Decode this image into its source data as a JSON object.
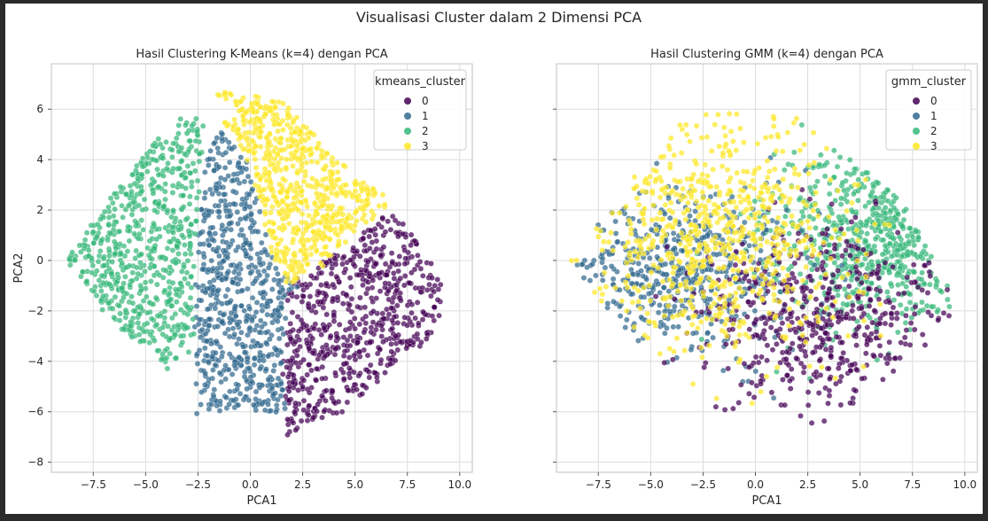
{
  "figure": {
    "suptitle": "Visualisasi Cluster dalam 2 Dimensi PCA"
  },
  "palette": {
    "cluster_colors": [
      "#440154",
      "#31688e",
      "#35b779",
      "#fde725"
    ],
    "grid_color": "#dcdcdc",
    "spine_color": "#cccccc",
    "background": "#ffffff"
  },
  "chart_data": [
    {
      "type": "scatter",
      "title": "Hasil Clustering K-Means (k=4) dengan PCA",
      "xlabel": "PCA1",
      "ylabel": "PCA2",
      "xlim": [
        -9.5,
        10.6
      ],
      "ylim": [
        -8.4,
        7.8
      ],
      "xticks": [
        -7.5,
        -5.0,
        -2.5,
        0.0,
        2.5,
        5.0,
        7.5,
        10.0
      ],
      "xtick_labels": [
        "−7.5",
        "−5.0",
        "−2.5",
        "0.0",
        "2.5",
        "5.0",
        "7.5",
        "10.0"
      ],
      "yticks": [
        -8,
        -6,
        -4,
        -2,
        0,
        2,
        4,
        6
      ],
      "ytick_labels": [
        "−8",
        "−6",
        "−4",
        "−2",
        "0",
        "2",
        "4",
        "6"
      ],
      "grid": true,
      "legend": {
        "title": "kmeans_cluster",
        "placement": "top-right",
        "entries": [
          "0",
          "1",
          "2",
          "3"
        ]
      },
      "clusters": [
        {
          "name": "0",
          "color": "#440154",
          "approx_centroid": [
            5.3,
            -2.0
          ],
          "polygon": [
            [
              1.6,
              -1.0
            ],
            [
              4.5,
              0.5
            ],
            [
              6.6,
              2.0
            ],
            [
              8.1,
              0.8
            ],
            [
              9.6,
              -1.8
            ],
            [
              8.5,
              -3.2
            ],
            [
              6.5,
              -4.5
            ],
            [
              4.5,
              -6.0
            ],
            [
              3.0,
              -6.4
            ],
            [
              1.7,
              -7.0
            ],
            [
              1.5,
              -4.0
            ],
            [
              1.8,
              -2.0
            ]
          ]
        },
        {
          "name": "1",
          "color": "#31688e",
          "approx_centroid": [
            -0.8,
            -1.2
          ],
          "polygon": [
            [
              -1.5,
              5.3
            ],
            [
              -0.2,
              4.0
            ],
            [
              0.3,
              2.5
            ],
            [
              1.1,
              0.0
            ],
            [
              2.3,
              -1.0
            ],
            [
              1.8,
              -2.0
            ],
            [
              1.5,
              -4.0
            ],
            [
              1.7,
              -6.4
            ],
            [
              0.0,
              -5.9
            ],
            [
              -2.6,
              -6.1
            ],
            [
              -2.6,
              -4.0
            ],
            [
              -2.7,
              -1.5
            ],
            [
              -2.5,
              1.0
            ],
            [
              -2.3,
              3.5
            ]
          ]
        },
        {
          "name": "2",
          "color": "#35b779",
          "approx_centroid": [
            -5.6,
            -0.2
          ],
          "polygon": [
            [
              -8.8,
              0.0
            ],
            [
              -7.5,
              1.6
            ],
            [
              -5.5,
              3.7
            ],
            [
              -3.8,
              5.5
            ],
            [
              -2.2,
              5.9
            ],
            [
              -2.4,
              3.0
            ],
            [
              -2.7,
              0.0
            ],
            [
              -2.7,
              -3.5
            ],
            [
              -4.0,
              -4.4
            ],
            [
              -5.6,
              -3.2
            ],
            [
              -7.5,
              -1.6
            ]
          ]
        },
        {
          "name": "3",
          "color": "#fde725",
          "approx_centroid": [
            2.9,
            2.8
          ],
          "polygon": [
            [
              -1.6,
              6.7
            ],
            [
              1.5,
              6.4
            ],
            [
              3.5,
              4.6
            ],
            [
              5.3,
              3.2
            ],
            [
              6.9,
              2.3
            ],
            [
              5.0,
              1.1
            ],
            [
              3.3,
              -0.4
            ],
            [
              1.7,
              -1.0
            ],
            [
              1.1,
              0.0
            ],
            [
              0.4,
              2.5
            ],
            [
              -0.3,
              4.3
            ],
            [
              -1.2,
              5.3
            ]
          ]
        }
      ]
    },
    {
      "type": "scatter",
      "title": "Hasil Clustering GMM (k=4) dengan PCA",
      "xlabel": "PCA1",
      "ylabel": "",
      "xlim": [
        -9.5,
        10.6
      ],
      "ylim": [
        -8.4,
        7.8
      ],
      "xticks": [
        -7.5,
        -5.0,
        -2.5,
        0.0,
        2.5,
        5.0,
        7.5,
        10.0
      ],
      "xtick_labels": [
        "−7.5",
        "−5.0",
        "−2.5",
        "0.0",
        "2.5",
        "5.0",
        "7.5",
        "10.0"
      ],
      "yticks": [
        -8,
        -6,
        -4,
        -2,
        0,
        2,
        4,
        6
      ],
      "ytick_labels": [],
      "grid": true,
      "legend": {
        "title": "gmm_cluster",
        "placement": "top-right",
        "entries": [
          "0",
          "1",
          "2",
          "3"
        ]
      },
      "clusters": [
        {
          "name": "0",
          "color": "#440154",
          "approx_centroid": [
            3.0,
            -2.2
          ],
          "spread": [
            2.8,
            1.8
          ]
        },
        {
          "name": "1",
          "color": "#31688e",
          "approx_centroid": [
            -3.5,
            -0.5
          ],
          "spread": [
            3.0,
            1.6
          ]
        },
        {
          "name": "2",
          "color": "#35b779",
          "approx_centroid": [
            5.5,
            1.0
          ],
          "spread": [
            2.5,
            1.8
          ]
        },
        {
          "name": "3",
          "color": "#fde725",
          "approx_centroid": [
            -2.0,
            1.0
          ],
          "spread": [
            3.2,
            2.4
          ]
        }
      ]
    }
  ]
}
